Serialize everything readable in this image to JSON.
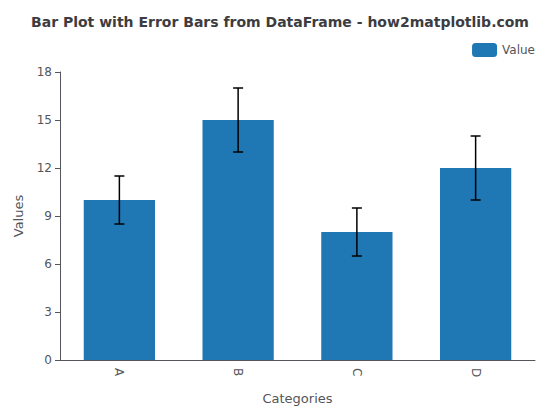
{
  "chart_data": {
    "type": "bar",
    "title": "Bar Plot with Error Bars from DataFrame - how2matplotlib.com",
    "xlabel": "Categories",
    "ylabel": "Values",
    "categories": [
      "A",
      "B",
      "C",
      "D"
    ],
    "series": [
      {
        "name": "Value",
        "color": "#1f77b4",
        "values": [
          10,
          15,
          8,
          12
        ],
        "errors": [
          1.5,
          2.0,
          1.5,
          2.0
        ]
      }
    ],
    "ylim": [
      0,
      18
    ],
    "yticks": [
      0,
      3,
      6,
      9,
      12,
      15,
      18
    ],
    "grid": false,
    "legend": "upper right"
  }
}
